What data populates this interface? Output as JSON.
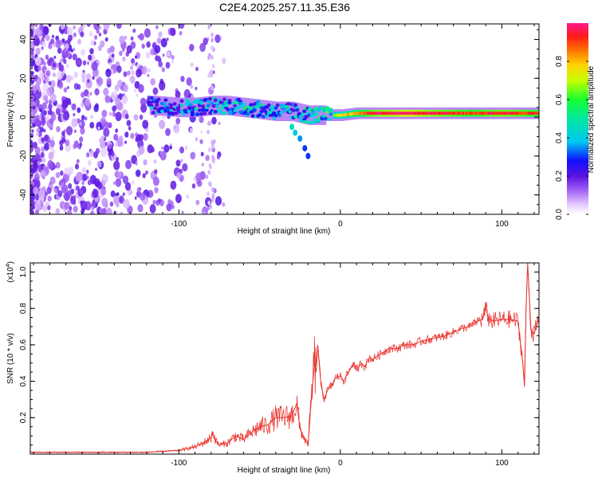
{
  "title": "C2E4.2025.257.11.35.E36",
  "chart_data": [
    {
      "type": "heatmap",
      "name": "spectrogram",
      "title": "C2E4.2025.257.11.35.E36",
      "xlabel": "Height of straight line (km)",
      "ylabel": "Frequency (Hz)",
      "xlim": [
        -192,
        123
      ],
      "ylim": [
        -50,
        48
      ],
      "xticks": [
        "-100",
        "0",
        "100"
      ],
      "xtick_values": [
        -100,
        0,
        100
      ],
      "yticks": [
        "-40",
        "-20",
        "0",
        "20",
        "40"
      ],
      "ytick_values": [
        -40,
        -20,
        0,
        20,
        40
      ],
      "colorbar": {
        "label": "Normalized spectral amplitude",
        "range": [
          0,
          1
        ],
        "ticks": [
          "0.0",
          "0.2",
          "0.4",
          "0.6",
          "0.8"
        ],
        "tick_values": [
          0,
          0.2,
          0.4,
          0.6,
          0.8
        ]
      },
      "ridge": {
        "description_free": true,
        "x": [
          -115,
          -100,
          -90,
          -80,
          -70,
          -60,
          -50,
          -40,
          -30,
          -25,
          -20,
          -10,
          0,
          10,
          20,
          40,
          60,
          80,
          100,
          123
        ],
        "freq": [
          6,
          5,
          5,
          6,
          6,
          5,
          4,
          3,
          3,
          2,
          1,
          1,
          1,
          2,
          2,
          2,
          2,
          2,
          2,
          2
        ],
        "amplitude": [
          0.4,
          0.45,
          0.5,
          0.45,
          0.5,
          0.55,
          0.5,
          0.5,
          0.45,
          0.5,
          0.55,
          0.6,
          0.75,
          0.85,
          0.95,
          1.0,
          0.95,
          0.9,
          0.95,
          0.9
        ]
      },
      "branch": {
        "x": [
          -30,
          -28,
          -25,
          -22,
          -20
        ],
        "freq": [
          -5,
          -8,
          -11,
          -16,
          -20
        ],
        "amplitude": [
          0.45,
          0.4,
          0.35,
          0.3,
          0.3
        ]
      }
    },
    {
      "type": "line",
      "name": "snr",
      "xlabel": "Height of straight line (km)",
      "ylabel": "SNR (10 * v/v)",
      "y_scale_label": "(x10",
      "y_scale_exp": "4",
      "y_scale_close": ")",
      "xlim": [
        -192,
        123
      ],
      "ylim": [
        0,
        1.05
      ],
      "xticks": [
        "-100",
        "0",
        "100"
      ],
      "xtick_values": [
        -100,
        0,
        100
      ],
      "yticks": [
        "0.2",
        "0.4",
        "0.6",
        "0.8",
        "1.0"
      ],
      "ytick_values": [
        0.2,
        0.4,
        0.6,
        0.8,
        1.0
      ],
      "color": "#e8302a",
      "series": [
        {
          "name": "SNR",
          "x": [
            -192,
            -160,
            -120,
            -100,
            -95,
            -90,
            -85,
            -80,
            -79,
            -77,
            -75,
            -70,
            -65,
            -60,
            -55,
            -50,
            -45,
            -40,
            -35,
            -30,
            -27,
            -25,
            -22,
            -20,
            -18,
            -16,
            -15,
            -14,
            -12,
            -10,
            -8,
            -5,
            -3,
            0,
            2,
            5,
            8,
            10,
            13,
            15,
            18,
            20,
            25,
            30,
            35,
            40,
            45,
            50,
            55,
            60,
            65,
            70,
            75,
            80,
            85,
            88,
            90,
            92,
            95,
            100,
            105,
            110,
            113,
            114,
            115,
            116,
            118,
            120,
            123
          ],
          "y": [
            0.01,
            0.01,
            0.01,
            0.02,
            0.03,
            0.04,
            0.06,
            0.09,
            0.12,
            0.07,
            0.05,
            0.06,
            0.1,
            0.08,
            0.12,
            0.15,
            0.16,
            0.2,
            0.2,
            0.21,
            0.28,
            0.14,
            0.08,
            0.05,
            0.3,
            0.5,
            0.45,
            0.6,
            0.38,
            0.3,
            0.35,
            0.38,
            0.42,
            0.43,
            0.4,
            0.45,
            0.5,
            0.46,
            0.5,
            0.48,
            0.53,
            0.52,
            0.55,
            0.58,
            0.58,
            0.6,
            0.6,
            0.62,
            0.63,
            0.64,
            0.65,
            0.67,
            0.69,
            0.7,
            0.73,
            0.74,
            0.8,
            0.74,
            0.73,
            0.74,
            0.74,
            0.73,
            0.5,
            0.37,
            0.8,
            1.05,
            0.68,
            0.66,
            0.75
          ]
        }
      ]
    }
  ]
}
